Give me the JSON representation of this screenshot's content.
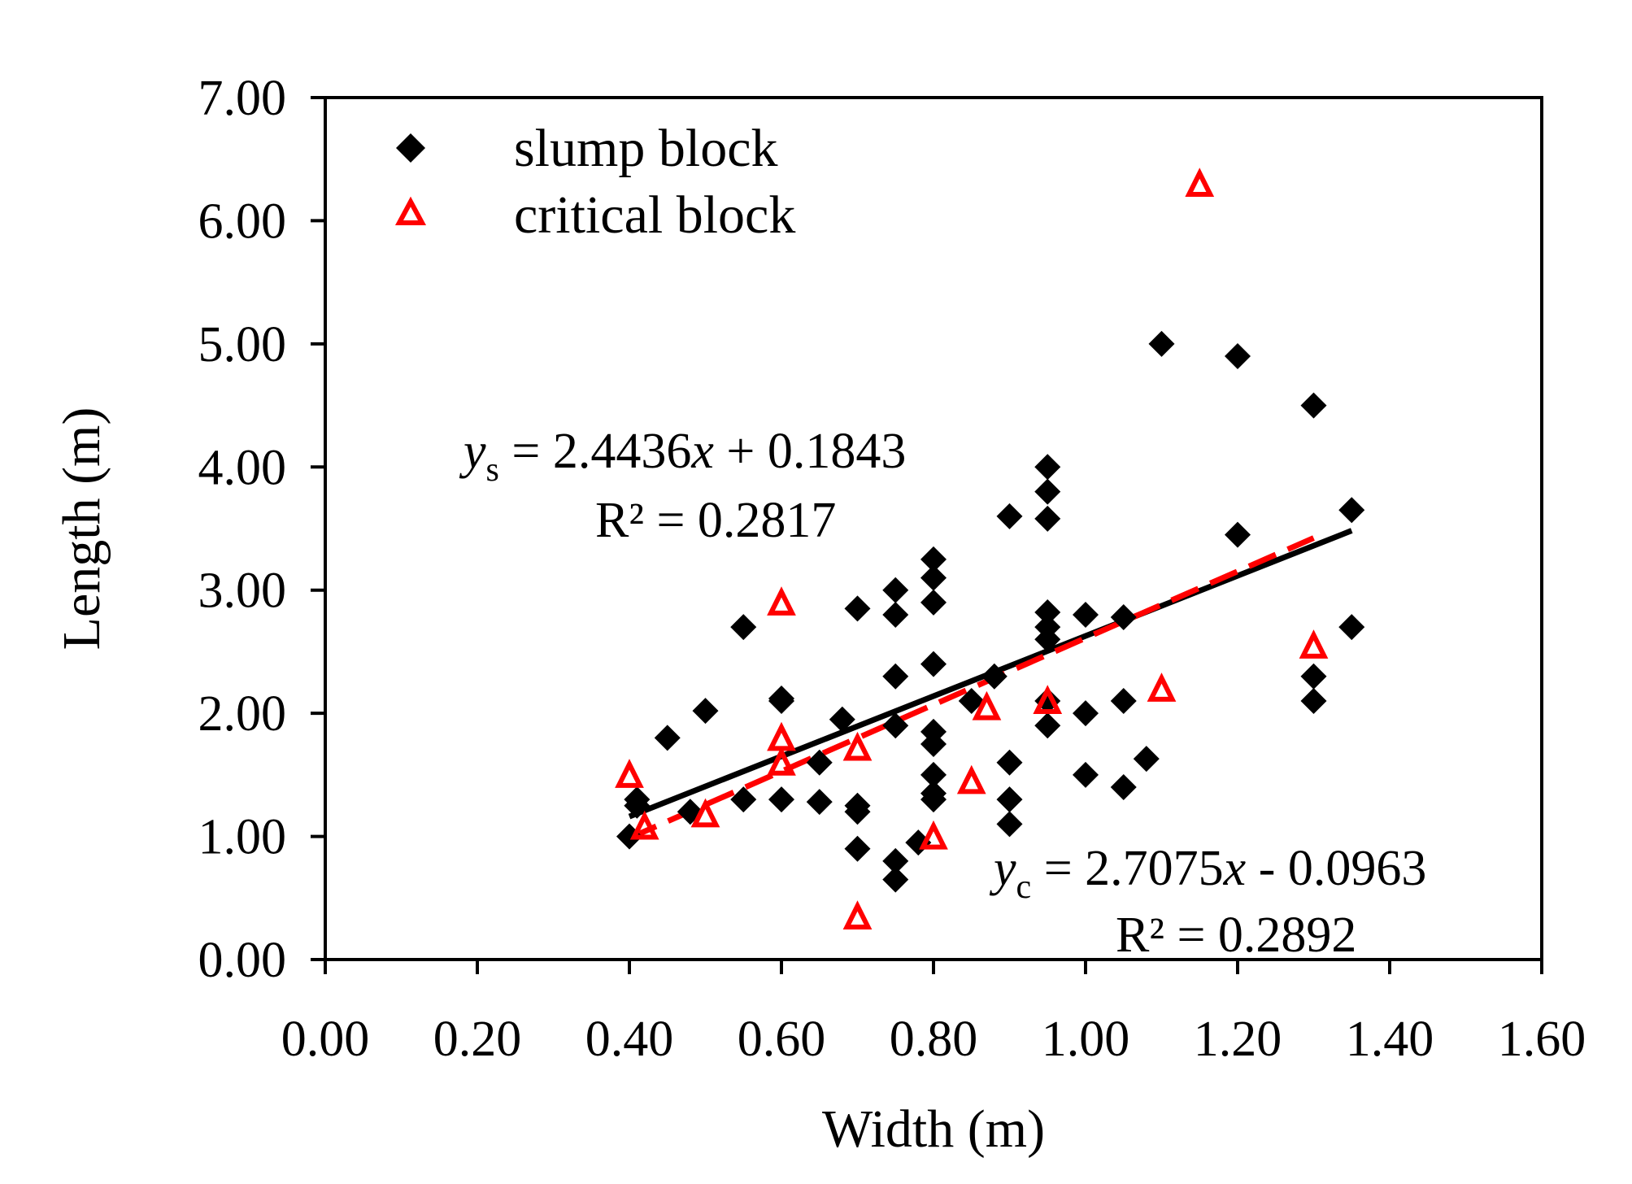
{
  "chart_data": {
    "type": "scatter",
    "xlabel": "Width (m)",
    "ylabel": "Length (m)",
    "xlim": [
      0,
      1.6
    ],
    "ylim": [
      0,
      7
    ],
    "x_ticks": [
      "0.00",
      "0.20",
      "0.40",
      "0.60",
      "0.80",
      "1.00",
      "1.20",
      "1.40",
      "1.60"
    ],
    "y_ticks": [
      "0.00",
      "1.00",
      "2.00",
      "3.00",
      "4.00",
      "5.00",
      "6.00",
      "7.00"
    ],
    "grid": false,
    "legend_position": "top-left",
    "series": [
      {
        "name": "slump block",
        "marker": "diamond",
        "color": "#000000",
        "points": [
          [
            0.4,
            1.0
          ],
          [
            0.41,
            1.3
          ],
          [
            0.41,
            1.25
          ],
          [
            0.45,
            1.8
          ],
          [
            0.48,
            1.2
          ],
          [
            0.5,
            2.02
          ],
          [
            0.55,
            2.7
          ],
          [
            0.55,
            1.3
          ],
          [
            0.6,
            2.12
          ],
          [
            0.6,
            2.1
          ],
          [
            0.6,
            1.3
          ],
          [
            0.65,
            1.6
          ],
          [
            0.65,
            1.28
          ],
          [
            0.68,
            1.95
          ],
          [
            0.7,
            2.85
          ],
          [
            0.7,
            1.25
          ],
          [
            0.7,
            1.2
          ],
          [
            0.7,
            0.9
          ],
          [
            0.75,
            3.0
          ],
          [
            0.75,
            2.8
          ],
          [
            0.75,
            2.3
          ],
          [
            0.75,
            1.9
          ],
          [
            0.75,
            0.8
          ],
          [
            0.75,
            0.65
          ],
          [
            0.78,
            0.95
          ],
          [
            0.8,
            3.25
          ],
          [
            0.8,
            3.1
          ],
          [
            0.8,
            2.9
          ],
          [
            0.8,
            2.4
          ],
          [
            0.8,
            1.85
          ],
          [
            0.8,
            1.75
          ],
          [
            0.8,
            1.5
          ],
          [
            0.8,
            1.35
          ],
          [
            0.8,
            1.3
          ],
          [
            0.85,
            2.1
          ],
          [
            0.88,
            2.3
          ],
          [
            0.9,
            3.6
          ],
          [
            0.9,
            1.6
          ],
          [
            0.9,
            1.3
          ],
          [
            0.9,
            1.1
          ],
          [
            0.95,
            4.0
          ],
          [
            0.95,
            3.8
          ],
          [
            0.95,
            3.58
          ],
          [
            0.95,
            2.82
          ],
          [
            0.95,
            2.7
          ],
          [
            0.95,
            2.6
          ],
          [
            0.95,
            2.1
          ],
          [
            0.95,
            1.9
          ],
          [
            1.0,
            2.8
          ],
          [
            1.0,
            2.0
          ],
          [
            1.0,
            1.5
          ],
          [
            1.05,
            2.78
          ],
          [
            1.05,
            2.1
          ],
          [
            1.05,
            1.4
          ],
          [
            1.08,
            1.63
          ],
          [
            1.1,
            5.0
          ],
          [
            1.2,
            4.9
          ],
          [
            1.2,
            3.45
          ],
          [
            1.3,
            4.5
          ],
          [
            1.3,
            2.3
          ],
          [
            1.3,
            2.1
          ],
          [
            1.35,
            3.65
          ],
          [
            1.35,
            2.7
          ]
        ]
      },
      {
        "name": "critical block",
        "marker": "triangle-open",
        "color": "#ff0000",
        "points": [
          [
            0.4,
            1.5
          ],
          [
            0.42,
            1.08
          ],
          [
            0.5,
            1.18
          ],
          [
            0.6,
            2.9
          ],
          [
            0.6,
            1.8
          ],
          [
            0.6,
            1.6
          ],
          [
            0.7,
            1.72
          ],
          [
            0.7,
            0.35
          ],
          [
            0.8,
            1.0
          ],
          [
            0.85,
            1.45
          ],
          [
            0.87,
            2.05
          ],
          [
            0.95,
            2.1
          ],
          [
            1.1,
            2.2
          ],
          [
            1.15,
            6.3
          ],
          [
            1.3,
            2.55
          ]
        ]
      }
    ],
    "trendlines": [
      {
        "series": "slump block",
        "style": "solid",
        "color": "#000000",
        "slope": 2.4436,
        "intercept": 0.1843,
        "x_range": [
          0.4,
          1.35
        ],
        "eq_var": "y",
        "eq_sub": "s",
        "eq_rest": " = 2.4436",
        "eq_x": "x",
        "eq_tail": " + 0.1843",
        "r2_text": "R² = 0.2817"
      },
      {
        "series": "critical block",
        "style": "dashed",
        "color": "#ff0000",
        "slope": 2.7075,
        "intercept": -0.0963,
        "x_range": [
          0.4,
          1.3
        ],
        "eq_var": "y",
        "eq_sub": "c",
        "eq_rest": " = 2.7075",
        "eq_x": "x",
        "eq_tail": " - 0.0963",
        "r2_text": "R² = 0.2892"
      }
    ]
  }
}
